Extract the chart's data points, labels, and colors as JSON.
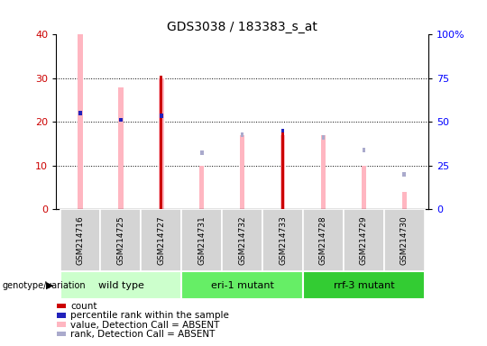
{
  "title": "GDS3038 / 183383_s_at",
  "samples": [
    "GSM214716",
    "GSM214725",
    "GSM214727",
    "GSM214731",
    "GSM214732",
    "GSM214733",
    "GSM214728",
    "GSM214729",
    "GSM214730"
  ],
  "groups": [
    {
      "name": "wild type",
      "indices": [
        0,
        1,
        2
      ],
      "color": "#ccffcc"
    },
    {
      "name": "eri-1 mutant",
      "indices": [
        3,
        4,
        5
      ],
      "color": "#66ee66"
    },
    {
      "name": "rrf-3 mutant",
      "indices": [
        6,
        7,
        8
      ],
      "color": "#33cc33"
    }
  ],
  "pink_bar_heights": [
    40,
    28,
    30,
    10,
    17,
    17,
    17,
    10,
    4
  ],
  "red_bar_heights": [
    0,
    0,
    30.5,
    0,
    0,
    17.5,
    0,
    0,
    0
  ],
  "blue_square_y": [
    22,
    20.5,
    21.5,
    null,
    null,
    18,
    null,
    null,
    null
  ],
  "light_blue_square_y": [
    null,
    null,
    null,
    13,
    17,
    null,
    16.5,
    13.5,
    8
  ],
  "ylim": [
    0,
    40
  ],
  "yticks_left": [
    0,
    10,
    20,
    30,
    40
  ],
  "yticks_right": [
    0,
    25,
    50,
    75,
    100
  ],
  "yticklabels_right": [
    "0",
    "25",
    "50",
    "75",
    "100%"
  ],
  "pink_color": "#FFB6C1",
  "red_color": "#CC0000",
  "blue_color": "#2222BB",
  "light_blue_color": "#AAAACC",
  "group_label": "genotype/variation",
  "legend_items": [
    {
      "color": "#CC0000",
      "label": "count"
    },
    {
      "color": "#2222BB",
      "label": "percentile rank within the sample"
    },
    {
      "color": "#FFB6C1",
      "label": "value, Detection Call = ABSENT"
    },
    {
      "color": "#AAAACC",
      "label": "rank, Detection Call = ABSENT"
    }
  ]
}
